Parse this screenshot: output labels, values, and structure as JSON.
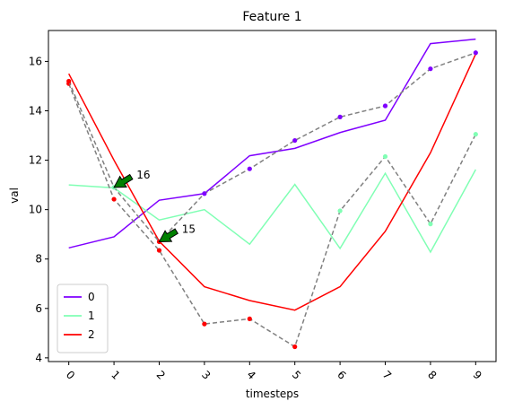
{
  "chart_data": {
    "type": "line",
    "title": "Feature 1",
    "xlabel": "timesteps",
    "ylabel": "val",
    "x": [
      0,
      1,
      2,
      3,
      4,
      5,
      6,
      7,
      8,
      9
    ],
    "xlim": [
      -0.45,
      9.45
    ],
    "ylim": [
      3.85,
      17.25
    ],
    "yticks": [
      4,
      6,
      8,
      10,
      12,
      14,
      16
    ],
    "xtick_rotation": 45,
    "grid": false,
    "legend_position": "lower-left",
    "series": [
      {
        "name": "0",
        "color": "#7f00ff",
        "values": [
          8.45,
          8.9,
          10.38,
          10.65,
          12.18,
          12.48,
          13.12,
          13.62,
          16.72,
          16.9
        ]
      },
      {
        "name": "1",
        "color": "#80ffb4",
        "values": [
          11.0,
          10.88,
          9.58,
          10.0,
          8.6,
          11.02,
          8.43,
          11.47,
          8.28,
          11.62
        ]
      },
      {
        "name": "2",
        "color": "#ff0000",
        "values": [
          15.5,
          12.0,
          8.72,
          6.88,
          6.32,
          5.93,
          6.88,
          9.12,
          12.3,
          16.3
        ]
      }
    ],
    "dashed_trace": {
      "color": "#808080",
      "points": [
        {
          "x": 0,
          "y": 15.1,
          "color": "#ff0000"
        },
        {
          "x": 1,
          "y": 10.42,
          "color": "#ff0000"
        },
        {
          "x": 2,
          "y": 8.35,
          "color": "#ff0000"
        },
        {
          "x": 3,
          "y": 5.37,
          "color": "#ff0000"
        },
        {
          "x": 4,
          "y": 5.58,
          "color": "#ff0000"
        },
        {
          "x": 5,
          "y": 4.45,
          "color": "#ff0000"
        },
        {
          "x": 6,
          "y": 9.95,
          "color": "#80ffb4"
        },
        {
          "x": 7,
          "y": 12.15,
          "color": "#80ffb4"
        },
        {
          "x": 8,
          "y": 9.42,
          "color": "#80ffb4"
        },
        {
          "x": 9,
          "y": 13.05,
          "color": "#80ffb4"
        }
      ]
    },
    "second_dashed_trace": {
      "color": "#808080",
      "points": [
        {
          "x": 0,
          "y": 15.2,
          "color": "#ff0000"
        },
        {
          "x": 1,
          "y": 10.9,
          "color": "#80ffb4"
        },
        {
          "x": 2,
          "y": 8.7,
          "color": "#ff0000"
        },
        {
          "x": 3,
          "y": 10.65,
          "color": "#7f00ff"
        },
        {
          "x": 4,
          "y": 11.65,
          "color": "#7f00ff"
        },
        {
          "x": 5,
          "y": 12.8,
          "color": "#7f00ff"
        },
        {
          "x": 6,
          "y": 13.75,
          "color": "#7f00ff"
        },
        {
          "x": 7,
          "y": 14.2,
          "color": "#7f00ff"
        },
        {
          "x": 8,
          "y": 15.7,
          "color": "#7f00ff"
        },
        {
          "x": 9,
          "y": 16.35,
          "color": "#7f00ff"
        }
      ]
    },
    "annotations": [
      {
        "text": "16",
        "x": 1.0,
        "y": 10.9,
        "text_x": 1.5,
        "text_y": 11.4,
        "arrow_color": "#008000"
      },
      {
        "text": "15",
        "x": 2.0,
        "y": 8.7,
        "text_x": 2.5,
        "text_y": 9.2,
        "arrow_color": "#008000"
      }
    ]
  }
}
